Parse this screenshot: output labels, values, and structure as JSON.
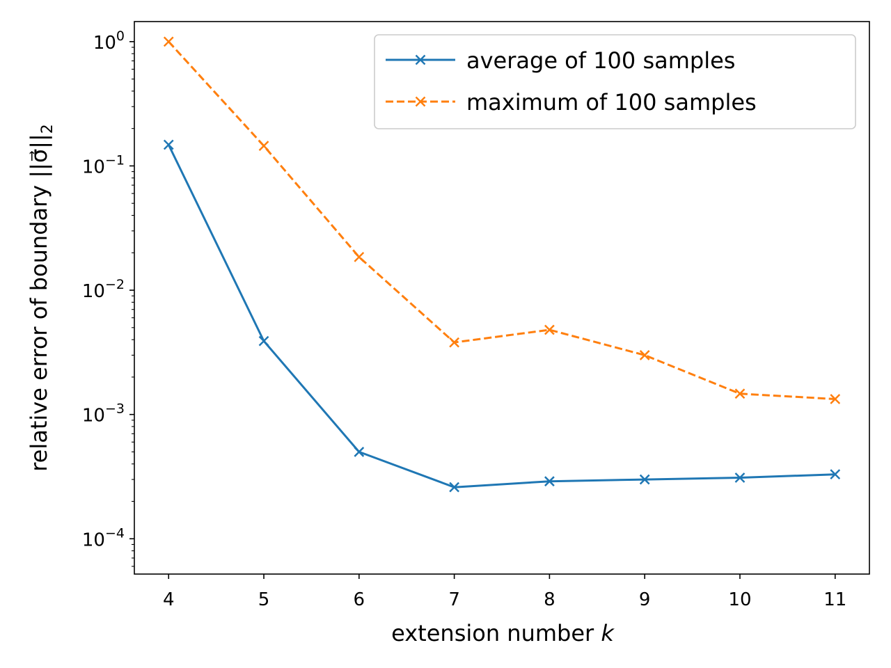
{
  "chart_data": {
    "type": "line",
    "title": "",
    "xlabel": "extension number",
    "xlabel_var": "k",
    "ylabel": "relative error of boundary ||σ⃗||",
    "ylabel_sub": "2",
    "yscale": "log",
    "xlim": [
      3.64,
      11.36
    ],
    "ylim": [
      5.2e-05,
      1.45
    ],
    "x": [
      4,
      5,
      6,
      7,
      8,
      9,
      10,
      11
    ],
    "x_tick_labels": [
      "4",
      "5",
      "6",
      "7",
      "8",
      "9",
      "10",
      "11"
    ],
    "y_tick_labels": [
      {
        "base": "10",
        "exp": "0",
        "value": 1
      },
      {
        "base": "10",
        "exp": "−1",
        "value": 0.1
      },
      {
        "base": "10",
        "exp": "−2",
        "value": 0.01
      },
      {
        "base": "10",
        "exp": "−3",
        "value": 0.001
      },
      {
        "base": "10",
        "exp": "−4",
        "value": 0.0001
      }
    ],
    "series": [
      {
        "name": "average of 100 samples",
        "color": "#1f77b4",
        "linestyle": "solid",
        "marker": "x",
        "values": [
          0.148,
          0.0039,
          0.0005,
          0.00026,
          0.00029,
          0.0003,
          0.00031,
          0.00033
        ]
      },
      {
        "name": "maximum of 100 samples",
        "color": "#ff7f0e",
        "linestyle": "dashed",
        "marker": "x",
        "values": [
          1.0,
          0.145,
          0.0185,
          0.0038,
          0.0048,
          0.003,
          0.00147,
          0.00133
        ]
      }
    ],
    "legend_position": "top-right",
    "grid": false
  }
}
